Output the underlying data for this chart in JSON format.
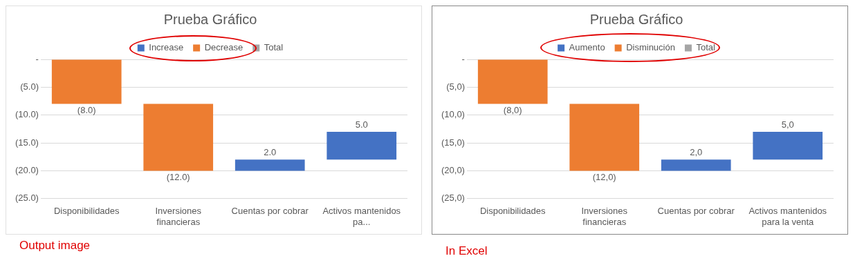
{
  "chart_data": [
    {
      "type": "bar",
      "title": "Prueba Gráfico",
      "categories": [
        "Disponibilidades",
        "Inversiones financieras",
        "Cuentas por cobrar",
        "Activos mantenidos pa..."
      ],
      "series": [
        {
          "name": "Increase",
          "color": "#4472c4",
          "values": [
            null,
            null,
            2,
            5
          ],
          "base": [
            null,
            null,
            -20,
            -18
          ],
          "value_labels": [
            null,
            null,
            "2.0",
            "5.0"
          ]
        },
        {
          "name": "Decrease",
          "color": "#ed7d31",
          "values": [
            -8,
            -12,
            null,
            null
          ],
          "base": [
            0,
            -8,
            null,
            null
          ],
          "value_labels": [
            "(8.0)",
            "(12.0)",
            null,
            null
          ]
        },
        {
          "name": "Total",
          "color": "#a5a5a5",
          "values": [
            null,
            null,
            null,
            null
          ]
        }
      ],
      "ylim": [
        -25,
        0
      ],
      "yticks": [
        {
          "value": 0,
          "label": "-"
        },
        {
          "value": -5,
          "label": "(5.0)"
        },
        {
          "value": -10,
          "label": "(10.0)"
        },
        {
          "value": -15,
          "label": "(15.0)"
        },
        {
          "value": -20,
          "label": "(20.0)"
        },
        {
          "value": -25,
          "label": "(25.0)"
        }
      ],
      "grid": "y",
      "legend": "top",
      "annotations": [
        "Output image"
      ]
    },
    {
      "type": "bar",
      "title": "Prueba Gráfico",
      "categories": [
        "Disponibilidades",
        "Inversiones financieras",
        "Cuentas por cobrar",
        "Activos mantenidos para la venta"
      ],
      "series": [
        {
          "name": "Aumento",
          "color": "#4472c4",
          "values": [
            null,
            null,
            2,
            5
          ],
          "base": [
            null,
            null,
            -20,
            -18
          ],
          "value_labels": [
            null,
            null,
            "2,0",
            "5,0"
          ]
        },
        {
          "name": "Disminución",
          "color": "#ed7d31",
          "values": [
            -8,
            -12,
            null,
            null
          ],
          "base": [
            0,
            -8,
            null,
            null
          ],
          "value_labels": [
            "(8,0)",
            "(12,0)",
            null,
            null
          ]
        },
        {
          "name": "Total",
          "color": "#a5a5a5",
          "values": [
            null,
            null,
            null,
            null
          ]
        }
      ],
      "ylim": [
        -25,
        0
      ],
      "yticks": [
        {
          "value": 0,
          "label": "-"
        },
        {
          "value": -5,
          "label": "(5,0)"
        },
        {
          "value": -10,
          "label": "(10,0)"
        },
        {
          "value": -15,
          "label": "(15,0)"
        },
        {
          "value": -20,
          "label": "(20,0)"
        },
        {
          "value": -25,
          "label": "(25,0)"
        }
      ],
      "grid": "y",
      "legend": "top",
      "annotations": [
        "In Excel"
      ]
    }
  ]
}
